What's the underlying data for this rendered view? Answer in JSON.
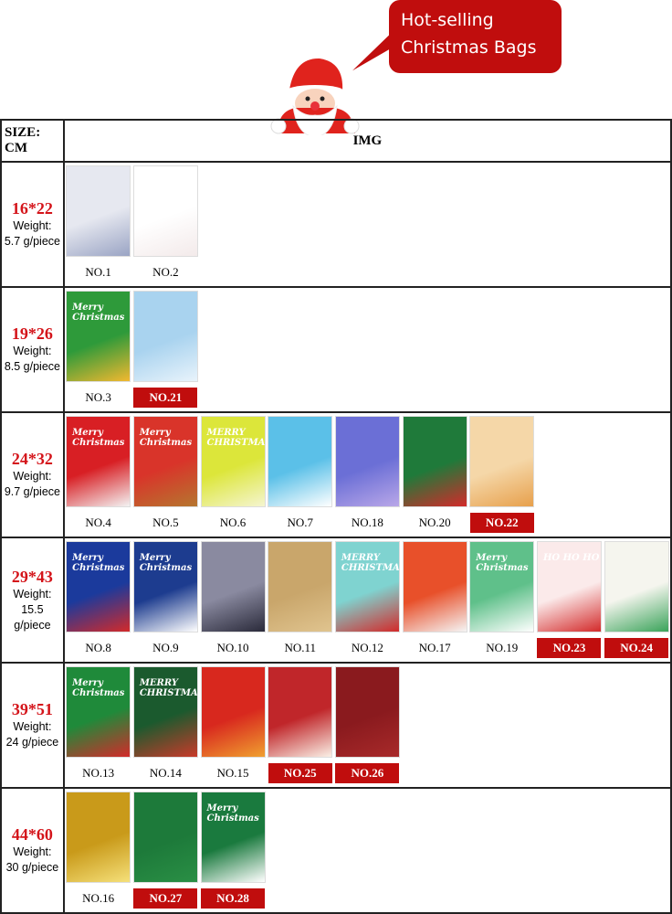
{
  "banner": {
    "line1": "Hot-selling",
    "line2": "Christmas Bags",
    "color": "#c00d0d"
  },
  "table": {
    "header": {
      "size": "SIZE: CM",
      "img": "IMG"
    },
    "highlight_color": "#c00d0d",
    "rows": [
      {
        "size": "16*22",
        "weight_label": "Weight:",
        "weight": "5.7 g/piece",
        "items": [
          {
            "label": "NO.1",
            "hot": false,
            "colors": [
              "#e6e8f0",
              "#9aa4c4"
            ]
          },
          {
            "label": "NO.2",
            "hot": false,
            "colors": [
              "#ffffff",
              "#f3eaea"
            ]
          }
        ]
      },
      {
        "size": "19*26",
        "weight_label": "Weight:",
        "weight": "8.5 g/piece",
        "items": [
          {
            "label": "NO.3",
            "hot": false,
            "colors": [
              "#2e9a3a",
              "#f2b830"
            ],
            "text": "Merry Christmas"
          },
          {
            "label": "NO.21",
            "hot": true,
            "colors": [
              "#a9d3ef",
              "#e8f3fb"
            ]
          }
        ]
      },
      {
        "size": "24*32",
        "weight_label": "Weight:",
        "weight": "9.7 g/piece",
        "items": [
          {
            "label": "NO.4",
            "hot": false,
            "colors": [
              "#d81f24",
              "#f3f3f3"
            ],
            "text": "Merry Christmas"
          },
          {
            "label": "NO.5",
            "hot": false,
            "colors": [
              "#d9342a",
              "#b5762f"
            ],
            "text": "Merry Christmas"
          },
          {
            "label": "NO.6",
            "hot": false,
            "colors": [
              "#dce63a",
              "#f5f5d0"
            ],
            "text": "MERRY CHRISTMAS"
          },
          {
            "label": "NO.7",
            "hot": false,
            "colors": [
              "#5bc0e8",
              "#ffffff"
            ]
          },
          {
            "label": "NO.18",
            "hot": false,
            "colors": [
              "#6b6fd6",
              "#b9a7e8"
            ]
          },
          {
            "label": "NO.20",
            "hot": false,
            "colors": [
              "#1f7a3a",
              "#d32a2a"
            ]
          },
          {
            "label": "NO.22",
            "hot": true,
            "colors": [
              "#f5d7a8",
              "#e7a04c"
            ]
          }
        ]
      },
      {
        "size": "29*43",
        "weight_label": "Weight:",
        "weight": "15.5 g/piece",
        "items": [
          {
            "label": "NO.8",
            "hot": false,
            "colors": [
              "#1b3a9c",
              "#d32a2a"
            ],
            "text": "Merry Christmas"
          },
          {
            "label": "NO.9",
            "hot": false,
            "colors": [
              "#1d3c8f",
              "#ffffff"
            ],
            "text": "Merry Christmas"
          },
          {
            "label": "NO.10",
            "hot": false,
            "colors": [
              "#8a8aa0",
              "#2a2a3a"
            ]
          },
          {
            "label": "NO.11",
            "hot": false,
            "colors": [
              "#c9a66b",
              "#e0c48f"
            ]
          },
          {
            "label": "NO.12",
            "hot": false,
            "colors": [
              "#7fd3d0",
              "#d32a2a"
            ],
            "text": "MERRY CHRISTMAS"
          },
          {
            "label": "NO.17",
            "hot": false,
            "colors": [
              "#e8502a",
              "#f5f5f5"
            ]
          },
          {
            "label": "NO.19",
            "hot": false,
            "colors": [
              "#5fc08a",
              "#ffffff"
            ],
            "text": "Merry Christmas"
          },
          {
            "label": "NO.23",
            "hot": true,
            "colors": [
              "#fbeaea",
              "#d32a2a"
            ],
            "text": "HO HO HO"
          },
          {
            "label": "NO.24",
            "hot": true,
            "colors": [
              "#f5f5ee",
              "#3aa35a"
            ]
          }
        ]
      },
      {
        "size": "39*51",
        "weight_label": "Weight:",
        "weight": "24 g/piece",
        "items": [
          {
            "label": "NO.13",
            "hot": false,
            "colors": [
              "#1f8a3a",
              "#d32a2a"
            ],
            "text": "Merry Christmas"
          },
          {
            "label": "NO.14",
            "hot": false,
            "colors": [
              "#1b5a2e",
              "#c93a2a"
            ],
            "text": "MERRY CHRISTMAS"
          },
          {
            "label": "NO.15",
            "hot": false,
            "colors": [
              "#d8281e",
              "#f0a030"
            ]
          },
          {
            "label": "NO.25",
            "hot": true,
            "colors": [
              "#c0262a",
              "#faf0e6"
            ]
          },
          {
            "label": "NO.26",
            "hot": true,
            "colors": [
              "#8a1a1e",
              "#a82a2a"
            ]
          }
        ]
      },
      {
        "size": "44*60",
        "weight_label": "Weight:",
        "weight": "30 g/piece",
        "items": [
          {
            "label": "NO.16",
            "hot": false,
            "colors": [
              "#c99a1a",
              "#f5e07a"
            ]
          },
          {
            "label": "NO.27",
            "hot": true,
            "colors": [
              "#1d7a3a",
              "#2a8f45"
            ]
          },
          {
            "label": "NO.28",
            "hot": true,
            "colors": [
              "#1a7a3e",
              "#ffffff"
            ],
            "text": "Merry Christmas"
          }
        ]
      }
    ]
  }
}
